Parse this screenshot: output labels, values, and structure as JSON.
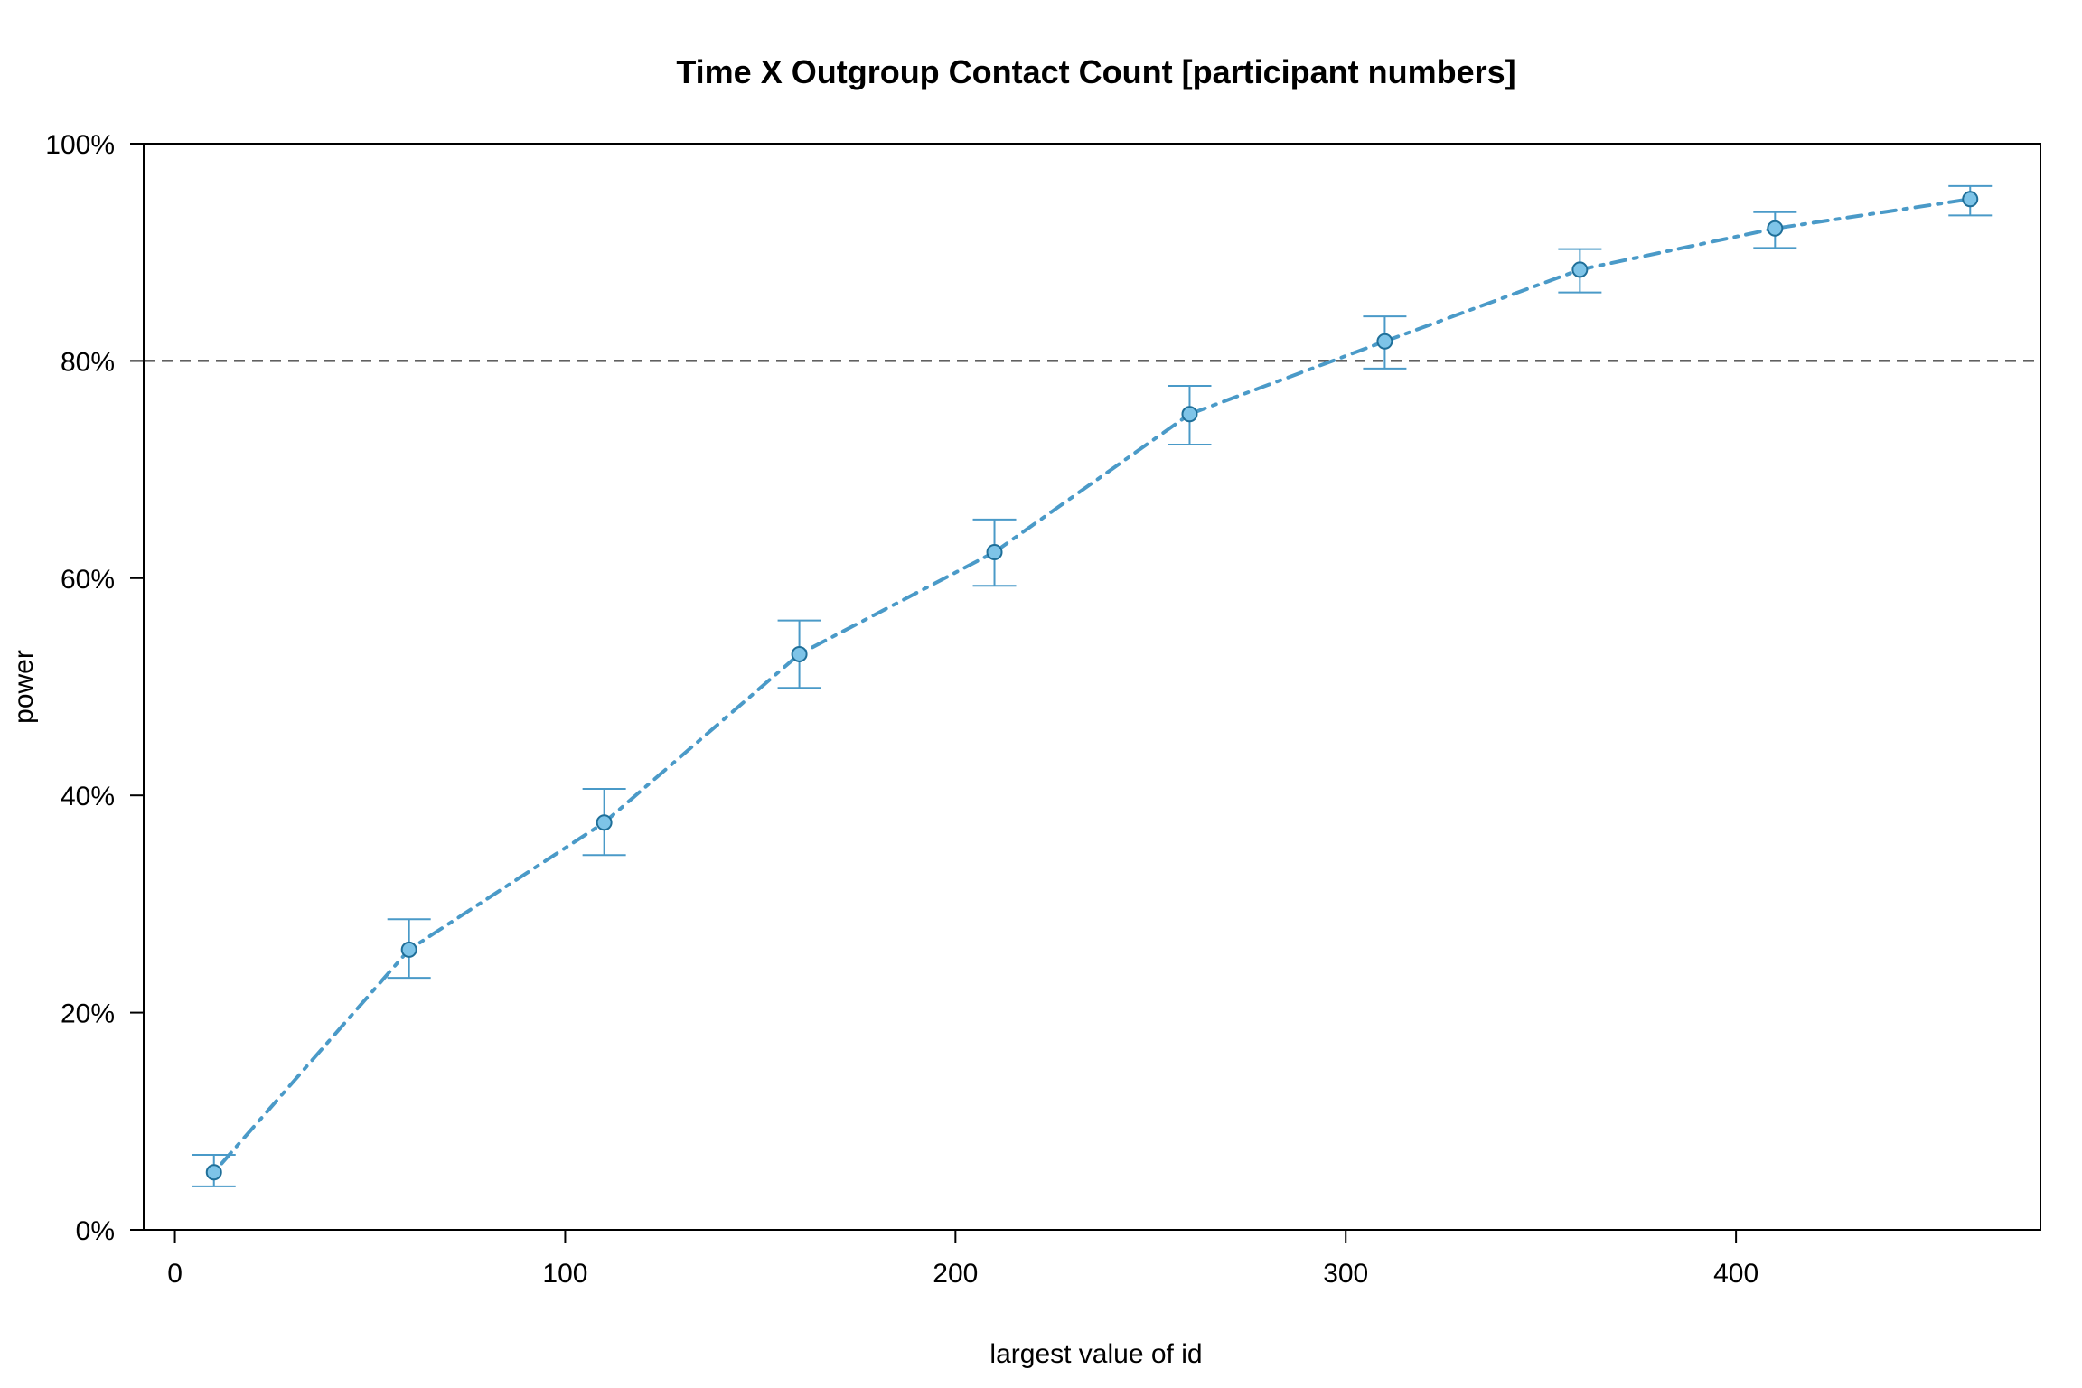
{
  "chart_data": {
    "type": "line",
    "title": "Time X Outgroup Contact Count [participant numbers]",
    "xlabel": "largest value of id",
    "ylabel": "power",
    "xlim": [
      -8,
      478
    ],
    "ylim": [
      0,
      100
    ],
    "x_ticks": [
      0,
      100,
      200,
      300,
      400
    ],
    "x_tick_labels": [
      "0",
      "100",
      "200",
      "300",
      "400"
    ],
    "y_ticks": [
      0,
      20,
      40,
      60,
      80,
      100
    ],
    "y_tick_labels": [
      "0%",
      "20%",
      "40%",
      "60%",
      "80%",
      "100%"
    ],
    "reference_line": {
      "y": 80,
      "style": "dashed"
    },
    "grid": false,
    "legend": "none",
    "series": [
      {
        "color": "#4a9ac8",
        "marker_fill": "#7ec4e8",
        "line_style": "dot-dash",
        "points": [
          {
            "x": 10,
            "y": 5.3,
            "lower": 4.0,
            "upper": 6.9
          },
          {
            "x": 60,
            "y": 25.8,
            "lower": 23.2,
            "upper": 28.6
          },
          {
            "x": 110,
            "y": 37.5,
            "lower": 34.5,
            "upper": 40.6
          },
          {
            "x": 160,
            "y": 53.0,
            "lower": 49.9,
            "upper": 56.1
          },
          {
            "x": 210,
            "y": 62.4,
            "lower": 59.3,
            "upper": 65.4
          },
          {
            "x": 260,
            "y": 75.1,
            "lower": 72.3,
            "upper": 77.7
          },
          {
            "x": 310,
            "y": 81.8,
            "lower": 79.3,
            "upper": 84.1
          },
          {
            "x": 360,
            "y": 88.4,
            "lower": 86.3,
            "upper": 90.3
          },
          {
            "x": 410,
            "y": 92.2,
            "lower": 90.4,
            "upper": 93.7
          },
          {
            "x": 460,
            "y": 94.9,
            "lower": 93.4,
            "upper": 96.1
          }
        ]
      }
    ]
  }
}
